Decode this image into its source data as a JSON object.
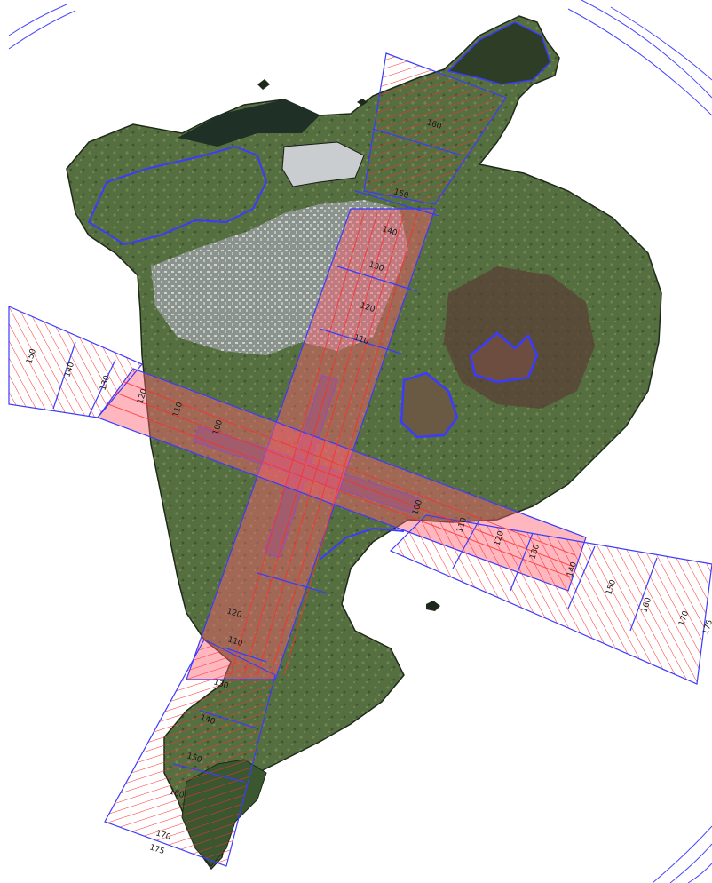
{
  "map": {
    "colors": {
      "background": "#ffffff",
      "land": "#4f6b3c",
      "land_dark": "#2f4228",
      "town": "#9ea3a4",
      "water_edge": "#0d1330",
      "hatch": "#ff2d2d",
      "contour": "#3b3bff",
      "zone_fill": "#ff6070"
    },
    "surfaces": [
      {
        "id": "surface-sw-approach",
        "labels": [
          "110",
          "120",
          "130",
          "140",
          "150",
          "160",
          "170",
          "175"
        ]
      },
      {
        "id": "surface-ne-approach",
        "labels": [
          "110",
          "120",
          "130",
          "140",
          "150",
          "160"
        ]
      },
      {
        "id": "surface-nw-approach",
        "labels": [
          "110",
          "100",
          "120",
          "130",
          "140",
          "150"
        ]
      },
      {
        "id": "surface-se-approach",
        "labels": [
          "110",
          "100",
          "120",
          "130",
          "140",
          "150",
          "160",
          "170",
          "175"
        ]
      }
    ]
  }
}
